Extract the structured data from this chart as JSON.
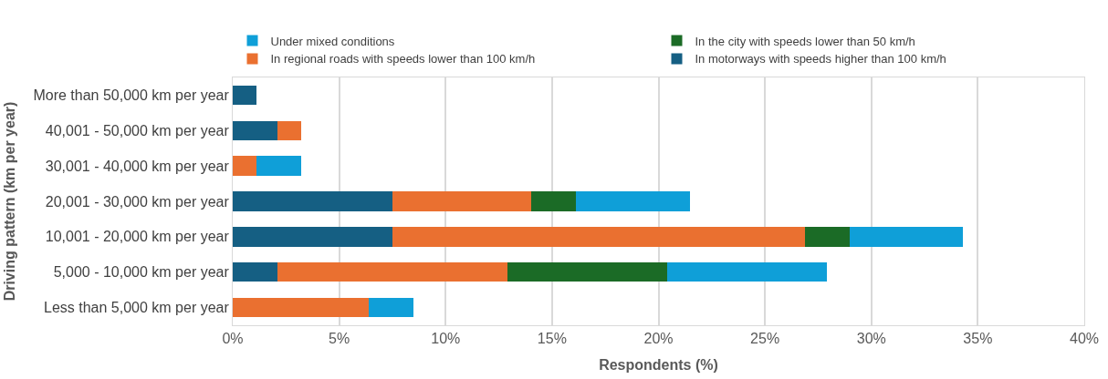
{
  "chart_data": {
    "type": "bar",
    "orientation": "horizontal",
    "stacked": true,
    "xlabel": "Respondents (%)",
    "ylabel": "Driving pattern (km per year)",
    "categories": [
      "More than 50,000 km per year",
      "40,001 - 50,000 km per year",
      "30,001 - 40,000 km per year",
      "20,001 - 30,000 km per year",
      "10,001 - 20,000 km per year",
      "5,000 - 10,000 km per year",
      "Less than 5,000 km per year"
    ],
    "series": [
      {
        "name": "In motorways with speeds higher than 100 km/h",
        "color": "#155f83",
        "values": [
          1.1,
          2.1,
          0,
          7.5,
          7.5,
          2.1,
          0
        ]
      },
      {
        "name": "In regional roads with speeds lower than 100 km/h",
        "color": "#ea7030",
        "values": [
          0,
          1.1,
          1.1,
          6.5,
          19.4,
          10.8,
          6.4
        ]
      },
      {
        "name": "In the city with speeds lower than 50 km/h",
        "color": "#1b6b26",
        "values": [
          0,
          0,
          0,
          2.1,
          2.1,
          7.5,
          0
        ]
      },
      {
        "name": "Under mixed conditions",
        "color": "#0f9fd8",
        "values": [
          0,
          0,
          2.1,
          5.4,
          5.3,
          7.5,
          2.1
        ]
      }
    ],
    "xlim": [
      0,
      40
    ],
    "xticks": [
      {
        "value": 0,
        "label": "0%"
      },
      {
        "value": 5,
        "label": "5%"
      },
      {
        "value": 10,
        "label": "10%"
      },
      {
        "value": 15,
        "label": "15%"
      },
      {
        "value": 20,
        "label": "20%"
      },
      {
        "value": 25,
        "label": "25%"
      },
      {
        "value": 30,
        "label": "30%"
      },
      {
        "value": 35,
        "label": "35%"
      },
      {
        "value": 40,
        "label": "40%"
      }
    ],
    "grid": "x",
    "legend": "top"
  }
}
